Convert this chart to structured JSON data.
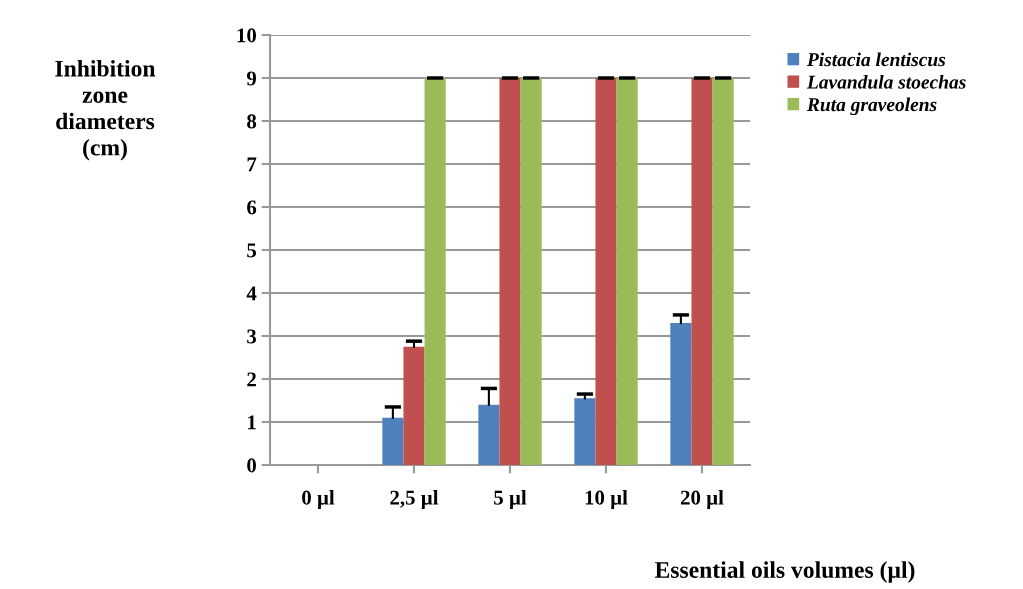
{
  "chart_data": {
    "type": "bar",
    "ylabel": "Inhibition\nzone\ndiameters\n(cm)",
    "xlabel": "Essential oils volumes (µl)",
    "categories": [
      "0 µl",
      "2,5 µl",
      "5 µl",
      "10 µl",
      "20 µl"
    ],
    "series": [
      {
        "name": "Pistacia lentiscus",
        "color": "#4f81bd",
        "values": [
          0,
          1.1,
          1.4,
          1.55,
          3.3
        ],
        "errors": [
          null,
          [
            1.1,
            1.35
          ],
          [
            1.4,
            1.78
          ],
          [
            1.55,
            1.65
          ],
          [
            3.3,
            3.49
          ]
        ]
      },
      {
        "name": "Lavandula stoechas",
        "color": "#c0504d",
        "values": [
          0,
          2.75,
          9,
          9,
          9
        ],
        "errors": [
          null,
          [
            2.75,
            2.88
          ],
          [
            9,
            9
          ],
          [
            9,
            9
          ],
          [
            9,
            9
          ]
        ]
      },
      {
        "name": "Ruta graveolens",
        "color": "#9bbb59",
        "values": [
          0,
          9,
          9,
          9,
          9
        ],
        "errors": [
          null,
          [
            9,
            9
          ],
          [
            9,
            9
          ],
          [
            9,
            9
          ],
          [
            9,
            9
          ]
        ]
      }
    ],
    "ylim": [
      0,
      10
    ],
    "yticks": [
      0,
      1,
      2,
      3,
      4,
      5,
      6,
      7,
      8,
      9,
      10
    ],
    "grid": "y",
    "legend": "top right"
  }
}
